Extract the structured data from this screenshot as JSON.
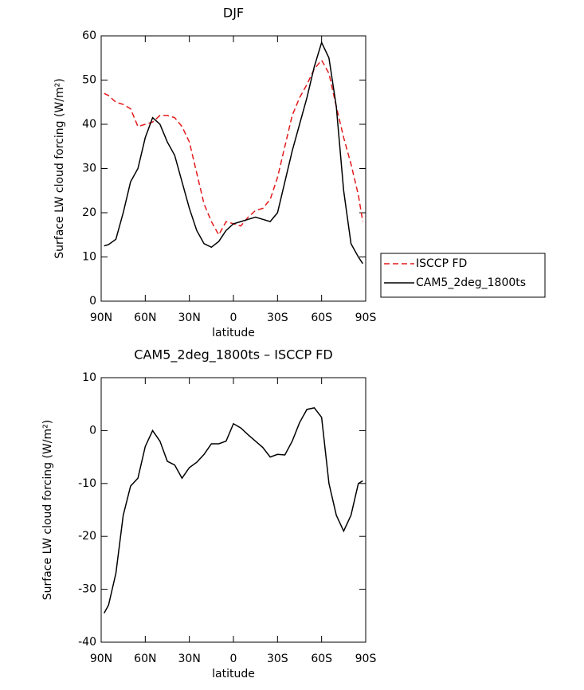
{
  "chart_data": [
    {
      "type": "line",
      "title": "DJF",
      "xlabel": "latitude",
      "ylabel": "Surface LW cloud forcing (W/m²)",
      "x": [
        88,
        85,
        80,
        75,
        70,
        65,
        60,
        55,
        50,
        45,
        40,
        35,
        30,
        25,
        20,
        15,
        10,
        5,
        0,
        -5,
        -10,
        -15,
        -20,
        -25,
        -30,
        -35,
        -40,
        -45,
        -50,
        -55,
        -60,
        -65,
        -70,
        -75,
        -80,
        -85,
        -88
      ],
      "series": [
        {
          "name": "ISCCP FD",
          "color": "#e31a1c",
          "style": "dashed",
          "values": [
            47,
            46.5,
            45,
            44.5,
            43.5,
            39.5,
            40,
            40.5,
            42,
            42,
            41.5,
            39.5,
            36,
            29,
            22,
            18,
            15,
            18,
            17.5,
            17,
            19,
            20.5,
            21,
            23,
            28,
            35,
            42,
            46,
            49,
            52.5,
            54.5,
            51.5,
            44,
            37,
            31,
            24,
            18
          ]
        },
        {
          "name": "CAM5_2deg_1800ts",
          "color": "#000000",
          "style": "solid",
          "values": [
            12.5,
            12.8,
            14,
            20,
            27,
            30,
            37,
            41.5,
            40,
            36,
            33,
            27,
            21,
            16,
            13,
            12.2,
            13.5,
            16,
            17.5,
            18,
            18.5,
            19,
            18.5,
            18,
            20,
            27,
            34,
            40,
            46,
            53,
            58.5,
            55,
            44,
            25,
            13,
            10,
            8.5
          ]
        }
      ],
      "xlim": [
        90,
        -90
      ],
      "xticks": [
        {
          "value": 90,
          "label": "90N"
        },
        {
          "value": 60,
          "label": "60N"
        },
        {
          "value": 30,
          "label": "30N"
        },
        0,
        {
          "value": -30,
          "label": "30S"
        },
        {
          "value": -60,
          "label": "60S"
        },
        {
          "value": -90,
          "label": "90S"
        }
      ],
      "ylim": [
        0,
        60
      ],
      "yticks": [
        0,
        10,
        20,
        30,
        40,
        50,
        60
      ],
      "legend": "outside-right"
    },
    {
      "type": "line",
      "title": "CAM5_2deg_1800ts – ISCCP FD",
      "xlabel": "latitude",
      "ylabel": "Surface LW cloud forcing (W/m²)",
      "x": [
        88,
        85,
        80,
        75,
        70,
        65,
        60,
        55,
        50,
        45,
        40,
        35,
        30,
        25,
        20,
        15,
        10,
        5,
        0,
        -5,
        -10,
        -15,
        -20,
        -25,
        -30,
        -35,
        -40,
        -45,
        -50,
        -55,
        -60,
        -65,
        -70,
        -75,
        -80,
        -85,
        -88
      ],
      "series": [
        {
          "color": "#000000",
          "style": "solid",
          "values": [
            -34.5,
            -33,
            -27,
            -16,
            -10.5,
            -9,
            -3,
            0,
            -2,
            -5.8,
            -6.5,
            -9,
            -7,
            -6,
            -4.5,
            -2.5,
            -2.5,
            -2,
            1.3,
            0.5,
            -0.8,
            -2,
            -3.2,
            -5,
            -4.5,
            -4.6,
            -2,
            1.5,
            4,
            4.3,
            2.5,
            -10,
            -16,
            -19,
            -16,
            -10,
            -9.5
          ]
        }
      ],
      "xlim": [
        90,
        -90
      ],
      "xticks": [
        {
          "value": 90,
          "label": "90N"
        },
        {
          "value": 60,
          "label": "60N"
        },
        {
          "value": 30,
          "label": "30N"
        },
        0,
        {
          "value": -30,
          "label": "30S"
        },
        {
          "value": -60,
          "label": "60S"
        },
        {
          "value": -90,
          "label": "90S"
        }
      ],
      "ylim": [
        -40,
        10
      ],
      "yticks": [
        -40,
        -30,
        -20,
        -10,
        0,
        10
      ]
    }
  ]
}
